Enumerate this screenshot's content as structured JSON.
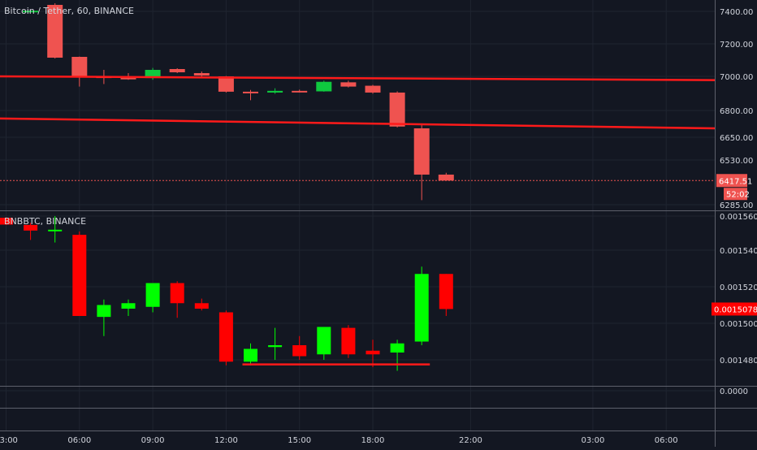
{
  "colors": {
    "background": "#131722",
    "grid": "#1f2430",
    "axis_text": "#d1d4dc",
    "separator": "#5d606b",
    "btc_up": "#26a69a",
    "btc_up_vivid": "#0fc93f",
    "btc_down": "#ef5350",
    "bnb_up": "#00ff00",
    "bnb_down": "#ff0000",
    "trendline": "#ff1a1a",
    "btc_price_tag": "#ef5350",
    "bnb_price_tag": "#ff0000"
  },
  "chart_data": [
    {
      "type": "candlestick",
      "title": "Bitcoin / Tether, 60, BINANCE",
      "symbol": "Bitcoin / Tether",
      "interval": "60",
      "exchange": "BINANCE",
      "y_ticks": [
        "7400.00",
        "7200.00",
        "7000.00",
        "6800.00",
        "6650.00",
        "6530.00",
        "6285.00"
      ],
      "last_price": "6417.51",
      "countdown": "52:02",
      "candles": [
        {
          "time": "04:00",
          "open": 7401,
          "high": 7405,
          "low": 7396,
          "close": 7404
        },
        {
          "time": "05:00",
          "open": 7440,
          "high": 7450,
          "low": 7110,
          "close": 7115
        },
        {
          "time": "06:00",
          "open": 7120,
          "high": 7122,
          "low": 6940,
          "close": 7000
        },
        {
          "time": "07:00",
          "open": 7000,
          "high": 7040,
          "low": 6955,
          "close": 6990
        },
        {
          "time": "08:00",
          "open": 6992,
          "high": 7020,
          "low": 6980,
          "close": 6985
        },
        {
          "time": "09:00",
          "open": 6990,
          "high": 7052,
          "low": 6980,
          "close": 7040
        },
        {
          "time": "10:00",
          "open": 7045,
          "high": 7050,
          "low": 7020,
          "close": 7025
        },
        {
          "time": "11:00",
          "open": 7020,
          "high": 7030,
          "low": 6998,
          "close": 7005
        },
        {
          "time": "12:00",
          "open": 7000,
          "high": 7002,
          "low": 6905,
          "close": 6910
        },
        {
          "time": "13:00",
          "open": 6910,
          "high": 6920,
          "low": 6860,
          "close": 6905
        },
        {
          "time": "14:00",
          "open": 6905,
          "high": 6930,
          "low": 6898,
          "close": 6915
        },
        {
          "time": "15:00",
          "open": 6915,
          "high": 6922,
          "low": 6905,
          "close": 6908
        },
        {
          "time": "16:00",
          "open": 6912,
          "high": 6975,
          "low": 6910,
          "close": 6968
        },
        {
          "time": "17:00",
          "open": 6965,
          "high": 6975,
          "low": 6935,
          "close": 6940
        },
        {
          "time": "18:00",
          "open": 6945,
          "high": 6950,
          "low": 6898,
          "close": 6905
        },
        {
          "time": "19:00",
          "open": 6905,
          "high": 6912,
          "low": 6705,
          "close": 6710
        },
        {
          "time": "20:00",
          "open": 6700,
          "high": 6720,
          "low": 6310,
          "close": 6450
        },
        {
          "time": "21:00",
          "open": 6450,
          "high": 6460,
          "low": 6417,
          "close": 6417.51
        }
      ],
      "trendlines": [
        {
          "from": {
            "time": "03:00",
            "price": 7000
          },
          "to": {
            "time": "08:00 (+1d)",
            "price": 6978
          }
        },
        {
          "from": {
            "time": "03:00",
            "price": 6755
          },
          "to": {
            "time": "08:00 (+1d)",
            "price": 6700
          }
        }
      ]
    },
    {
      "type": "candlestick",
      "title": "BNBBTC, BINANCE",
      "symbol": "BNBBTC",
      "exchange": "BINANCE",
      "y_ticks": [
        "0.0015600",
        "0.0015400",
        "0.0015200",
        "0.0015000",
        "0.0014800",
        "0.0000"
      ],
      "last_price": "0.0015078",
      "candles": [
        {
          "time": "03:00",
          "open": 0.001559,
          "high": 0.0015592,
          "low": 0.0015548,
          "close": 0.001555
        },
        {
          "time": "04:00",
          "open": 0.0015548,
          "high": 0.001556,
          "low": 0.001546,
          "close": 0.0015515
        },
        {
          "time": "05:00",
          "open": 0.001552,
          "high": 0.00156,
          "low": 0.0015445,
          "close": 0.001552
        },
        {
          "time": "06:00",
          "open": 0.001549,
          "high": 0.001551,
          "low": 0.001504,
          "close": 0.001504
        },
        {
          "time": "07:00",
          "open": 0.0015035,
          "high": 0.001513,
          "low": 0.001493,
          "close": 0.00151
        },
        {
          "time": "08:00",
          "open": 0.001508,
          "high": 0.001513,
          "low": 0.001504,
          "close": 0.001511
        },
        {
          "time": "09:00",
          "open": 0.001509,
          "high": 0.0015215,
          "low": 0.001506,
          "close": 0.001522
        },
        {
          "time": "10:00",
          "open": 0.001522,
          "high": 0.001523,
          "low": 0.001503,
          "close": 0.001511
        },
        {
          "time": "11:00",
          "open": 0.001511,
          "high": 0.0015135,
          "low": 0.001507,
          "close": 0.001508
        },
        {
          "time": "12:00",
          "open": 0.001506,
          "high": 0.001507,
          "low": 0.001477,
          "close": 0.001479
        },
        {
          "time": "13:00",
          "open": 0.001479,
          "high": 0.001489,
          "low": 0.001477,
          "close": 0.001486
        },
        {
          "time": "14:00",
          "open": 0.001487,
          "high": 0.0014975,
          "low": 0.00148,
          "close": 0.001488
        },
        {
          "time": "15:00",
          "open": 0.001488,
          "high": 0.001493,
          "low": 0.00148,
          "close": 0.001482
        },
        {
          "time": "16:00",
          "open": 0.001483,
          "high": 0.0014975,
          "low": 0.00148,
          "close": 0.001498
        },
        {
          "time": "17:00",
          "open": 0.0014975,
          "high": 0.001499,
          "low": 0.001481,
          "close": 0.001483
        },
        {
          "time": "18:00",
          "open": 0.001485,
          "high": 0.001491,
          "low": 0.001476,
          "close": 0.001483
        },
        {
          "time": "19:00",
          "open": 0.001484,
          "high": 0.001491,
          "low": 0.001474,
          "close": 0.001489
        },
        {
          "time": "20:00",
          "open": 0.00149,
          "high": 0.001531,
          "low": 0.001488,
          "close": 0.001527
        },
        {
          "time": "21:00",
          "open": 0.001527,
          "high": 0.001527,
          "low": 0.001504,
          "close": 0.0015078
        }
      ],
      "support_line": {
        "from": "13:00",
        "to": "20:00",
        "price": 0.0014775
      }
    }
  ],
  "time_axis": {
    "labels": [
      {
        "label": "03:00",
        "hour": 3
      },
      {
        "label": "06:00",
        "hour": 6
      },
      {
        "label": "09:00",
        "hour": 9
      },
      {
        "label": "12:00",
        "hour": 12
      },
      {
        "label": "15:00",
        "hour": 15
      },
      {
        "label": "18:00",
        "hour": 18
      },
      {
        "label": "22:00",
        "hour": 22
      },
      {
        "label": "03:00",
        "hour": 27
      },
      {
        "label": "06:00",
        "hour": 30
      }
    ]
  }
}
